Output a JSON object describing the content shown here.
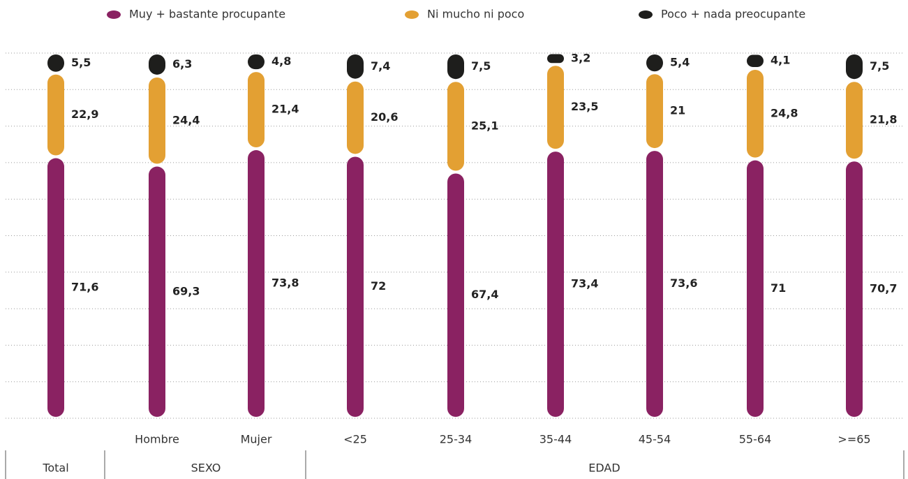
{
  "chart_data": {
    "type": "stacked_bar",
    "categories": [
      null,
      "Hombre",
      "Mujer",
      "<25",
      "25-34",
      "35-44",
      "45-54",
      "55-64",
      ">=65"
    ],
    "groups": [
      "Total",
      "SEXO",
      "EDAD"
    ],
    "series": [
      {
        "name": "Muy + bastante procupante",
        "color": "#8a2262",
        "values": [
          71.6,
          69.3,
          73.8,
          72,
          67.4,
          73.4,
          73.6,
          71,
          70.7
        ],
        "value_labels": [
          "71,6",
          "69,3",
          "73,8",
          "72",
          "67,4",
          "73,4",
          "73,6",
          "71",
          "70,7"
        ]
      },
      {
        "name": "Ni mucho ni poco",
        "color": "#e3a033",
        "values": [
          22.9,
          24.4,
          21.4,
          20.6,
          25.1,
          23.5,
          21,
          24.8,
          21.8
        ],
        "value_labels": [
          "22,9",
          "24,4",
          "21,4",
          "20,6",
          "25,1",
          "23,5",
          "21",
          "24,8",
          "21,8"
        ]
      },
      {
        "name": "Poco + nada preocupante",
        "color": "#1e1e1c",
        "values": [
          5.5,
          6.3,
          4.8,
          7.4,
          7.5,
          3.2,
          5.4,
          4.1,
          7.5
        ],
        "value_labels": [
          "5,5",
          "6,3",
          "4,8",
          "7,4",
          "7,5",
          "3,2",
          "5,4",
          "4,1",
          "7,5"
        ]
      }
    ],
    "ylim": [
      0,
      100
    ],
    "yticks": [
      0,
      10,
      20,
      30,
      40,
      50,
      60,
      70,
      80,
      90,
      100
    ],
    "grid": true
  }
}
